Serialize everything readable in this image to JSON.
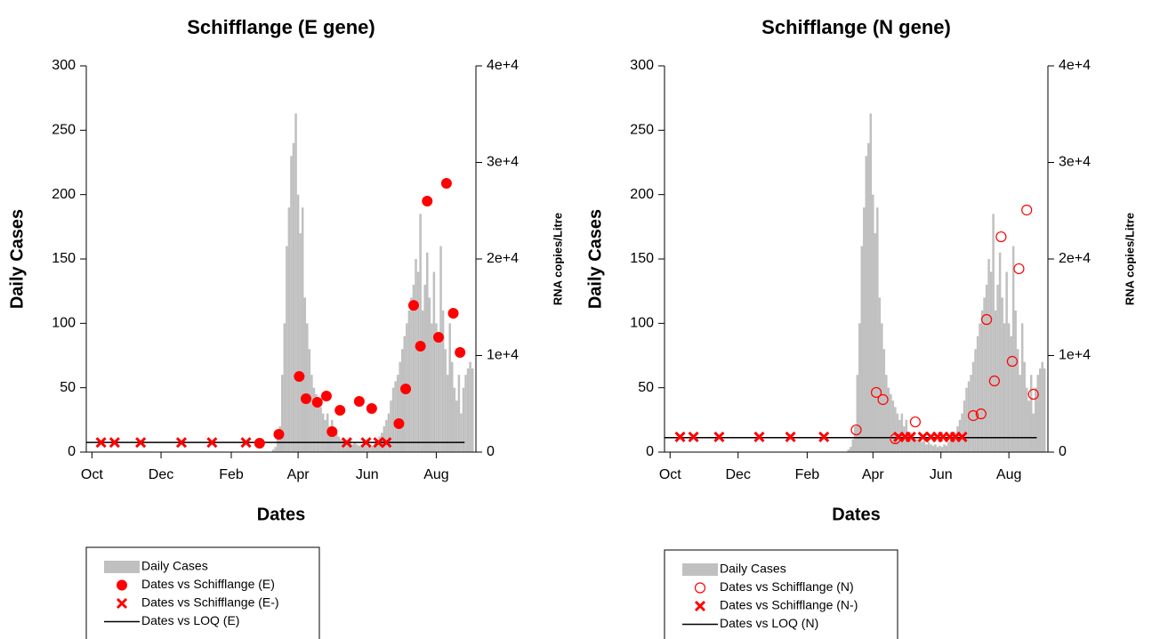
{
  "chart_data": [
    {
      "type": "combo",
      "title": "Schifflange (E gene)",
      "x_label": "Dates",
      "y_label": "Daily Cases",
      "y2_label": "RNA copies/Litre",
      "xlim": [
        -5,
        339
      ],
      "xticks": [
        {
          "value": 0,
          "label": "Oct"
        },
        {
          "value": 61,
          "label": "Dec"
        },
        {
          "value": 123,
          "label": "Feb"
        },
        {
          "value": 182,
          "label": "Apr"
        },
        {
          "value": 243,
          "label": "Jun"
        },
        {
          "value": 304,
          "label": "Aug"
        }
      ],
      "ylim": [
        0,
        300
      ],
      "yticks": [
        0,
        50,
        100,
        150,
        200,
        250,
        300
      ],
      "y2lim": [
        0,
        40000
      ],
      "y2ticks": [
        0,
        {
          "value": 10000,
          "label": "1e+4"
        },
        {
          "value": 20000,
          "label": "2e+4"
        },
        {
          "value": 30000,
          "label": "3e+4"
        },
        {
          "value": 40000,
          "label": "4e+4"
        }
      ],
      "grid": false,
      "legend": "below",
      "series": [
        {
          "name": "Daily Cases",
          "type": "bar",
          "color": "#c0c0c0",
          "x": [
            160,
            162,
            164,
            166,
            168,
            170,
            172,
            174,
            176,
            178,
            180,
            182,
            184,
            186,
            188,
            190,
            192,
            194,
            196,
            198,
            200,
            202,
            204,
            206,
            208,
            210,
            212,
            214,
            216,
            218,
            220,
            222,
            224,
            226,
            228,
            230,
            232,
            234,
            236,
            238,
            240,
            242,
            244,
            246,
            248,
            250,
            252,
            254,
            256,
            258,
            260,
            262,
            264,
            266,
            268,
            270,
            272,
            274,
            276,
            278,
            280,
            282,
            284,
            286,
            288,
            290,
            292,
            294,
            296,
            298,
            300,
            302,
            304,
            306,
            308,
            310,
            312,
            314,
            316,
            318,
            320,
            322,
            324,
            326,
            328,
            330,
            332,
            334,
            336
          ],
          "values": [
            2,
            4,
            10,
            20,
            60,
            100,
            160,
            190,
            230,
            240,
            263,
            200,
            170,
            190,
            120,
            100,
            80,
            60,
            50,
            45,
            40,
            35,
            30,
            25,
            30,
            20,
            25,
            15,
            15,
            12,
            10,
            10,
            8,
            8,
            10,
            6,
            8,
            6,
            5,
            6,
            4,
            5,
            4,
            6,
            5,
            8,
            10,
            12,
            15,
            20,
            25,
            30,
            40,
            50,
            55,
            60,
            70,
            80,
            90,
            100,
            110,
            120,
            130,
            150,
            140,
            185,
            110,
            130,
            155,
            120,
            100,
            140,
            100,
            90,
            160,
            110,
            80,
            60,
            100,
            70,
            50,
            40,
            60,
            30,
            50,
            60,
            65,
            70,
            65
          ]
        },
        {
          "name": "Dates vs Schifflange (E)",
          "type": "scatter",
          "marker": "dot",
          "color": "#ff0000",
          "axis": "y2",
          "x": [
            148,
            165,
            183,
            189,
            199,
            207,
            212,
            219,
            236,
            247,
            271,
            277,
            284,
            290,
            296,
            306,
            313,
            319,
            325
          ],
          "values": [
            920,
            1840,
            7830,
            5530,
            5160,
            5810,
            2120,
            4330,
            5250,
            4520,
            2950,
            6540,
            15200,
            10970,
            25990,
            11890,
            27830,
            14380,
            10320
          ]
        },
        {
          "name": "Dates vs Schifflange (E-)",
          "type": "scatter",
          "marker": "cross",
          "color": "#ff0000",
          "axis": "y2",
          "x": [
            8,
            20,
            43,
            79,
            106,
            136,
            225,
            242,
            253,
            260
          ],
          "values": [
            1000,
            1000,
            1000,
            1000,
            1000,
            1000,
            1000,
            1000,
            1000,
            1000
          ]
        },
        {
          "name": "Dates vs LOQ (E)",
          "type": "line",
          "color": "#000000",
          "axis": "y2",
          "x": [
            -5,
            329
          ],
          "values": [
            1000,
            1000
          ]
        }
      ]
    },
    {
      "type": "combo",
      "title": "Schifflange (N gene)",
      "x_label": "Dates",
      "y_label": "Daily Cases",
      "y2_label": "RNA copies/Litre",
      "xlim": [
        -5,
        339
      ],
      "xticks": [
        {
          "value": 0,
          "label": "Oct"
        },
        {
          "value": 61,
          "label": "Dec"
        },
        {
          "value": 123,
          "label": "Feb"
        },
        {
          "value": 182,
          "label": "Apr"
        },
        {
          "value": 243,
          "label": "Jun"
        },
        {
          "value": 304,
          "label": "Aug"
        }
      ],
      "ylim": [
        0,
        300
      ],
      "yticks": [
        0,
        50,
        100,
        150,
        200,
        250,
        300
      ],
      "y2lim": [
        0,
        40000
      ],
      "y2ticks": [
        0,
        {
          "value": 10000,
          "label": "1e+4"
        },
        {
          "value": 20000,
          "label": "2e+4"
        },
        {
          "value": 30000,
          "label": "3e+4"
        },
        {
          "value": 40000,
          "label": "4e+4"
        }
      ],
      "grid": false,
      "legend": "below",
      "series": [
        {
          "name": "Daily Cases",
          "type": "bar",
          "color": "#c0c0c0",
          "x": [
            160,
            162,
            164,
            166,
            168,
            170,
            172,
            174,
            176,
            178,
            180,
            182,
            184,
            186,
            188,
            190,
            192,
            194,
            196,
            198,
            200,
            202,
            204,
            206,
            208,
            210,
            212,
            214,
            216,
            218,
            220,
            222,
            224,
            226,
            228,
            230,
            232,
            234,
            236,
            238,
            240,
            242,
            244,
            246,
            248,
            250,
            252,
            254,
            256,
            258,
            260,
            262,
            264,
            266,
            268,
            270,
            272,
            274,
            276,
            278,
            280,
            282,
            284,
            286,
            288,
            290,
            292,
            294,
            296,
            298,
            300,
            302,
            304,
            306,
            308,
            310,
            312,
            314,
            316,
            318,
            320,
            322,
            324,
            326,
            328,
            330,
            332,
            334,
            336
          ],
          "values": [
            2,
            4,
            10,
            20,
            60,
            100,
            160,
            190,
            230,
            240,
            263,
            200,
            170,
            190,
            120,
            100,
            80,
            60,
            50,
            45,
            40,
            35,
            30,
            25,
            30,
            20,
            25,
            15,
            15,
            12,
            10,
            10,
            8,
            8,
            10,
            6,
            8,
            6,
            5,
            6,
            4,
            5,
            4,
            6,
            5,
            8,
            10,
            12,
            15,
            20,
            25,
            30,
            40,
            50,
            55,
            60,
            70,
            80,
            90,
            100,
            110,
            120,
            130,
            150,
            140,
            185,
            110,
            130,
            155,
            120,
            100,
            140,
            100,
            90,
            160,
            110,
            80,
            60,
            100,
            70,
            50,
            40,
            60,
            30,
            50,
            60,
            65,
            70,
            65
          ]
        },
        {
          "name": "Dates vs Schifflange (N)",
          "type": "scatter",
          "marker": "circle",
          "color": "#ff0000",
          "axis": "y2",
          "x": [
            167,
            185,
            191,
            202,
            220,
            272,
            279,
            284,
            291,
            297,
            307,
            313,
            320,
            326
          ],
          "values": [
            2300,
            6180,
            5440,
            1380,
            3130,
            3780,
            3960,
            13730,
            7370,
            22300,
            9400,
            18990,
            25070,
            5990
          ]
        },
        {
          "name": "Dates vs Schifflange (N-)",
          "type": "scatter",
          "marker": "cross",
          "color": "#ff0000",
          "axis": "y2",
          "x": [
            9,
            21,
            44,
            80,
            108,
            138,
            205,
            211,
            216,
            227,
            234,
            240,
            245,
            251,
            256,
            262
          ],
          "values": [
            1570,
            1570,
            1570,
            1570,
            1570,
            1570,
            1570,
            1570,
            1570,
            1570,
            1570,
            1570,
            1570,
            1570,
            1570,
            1570
          ]
        },
        {
          "name": "Dates vs LOQ (N)",
          "type": "line",
          "color": "#000000",
          "axis": "y2",
          "x": [
            -5,
            329
          ],
          "values": [
            1500,
            1500
          ]
        }
      ]
    }
  ]
}
